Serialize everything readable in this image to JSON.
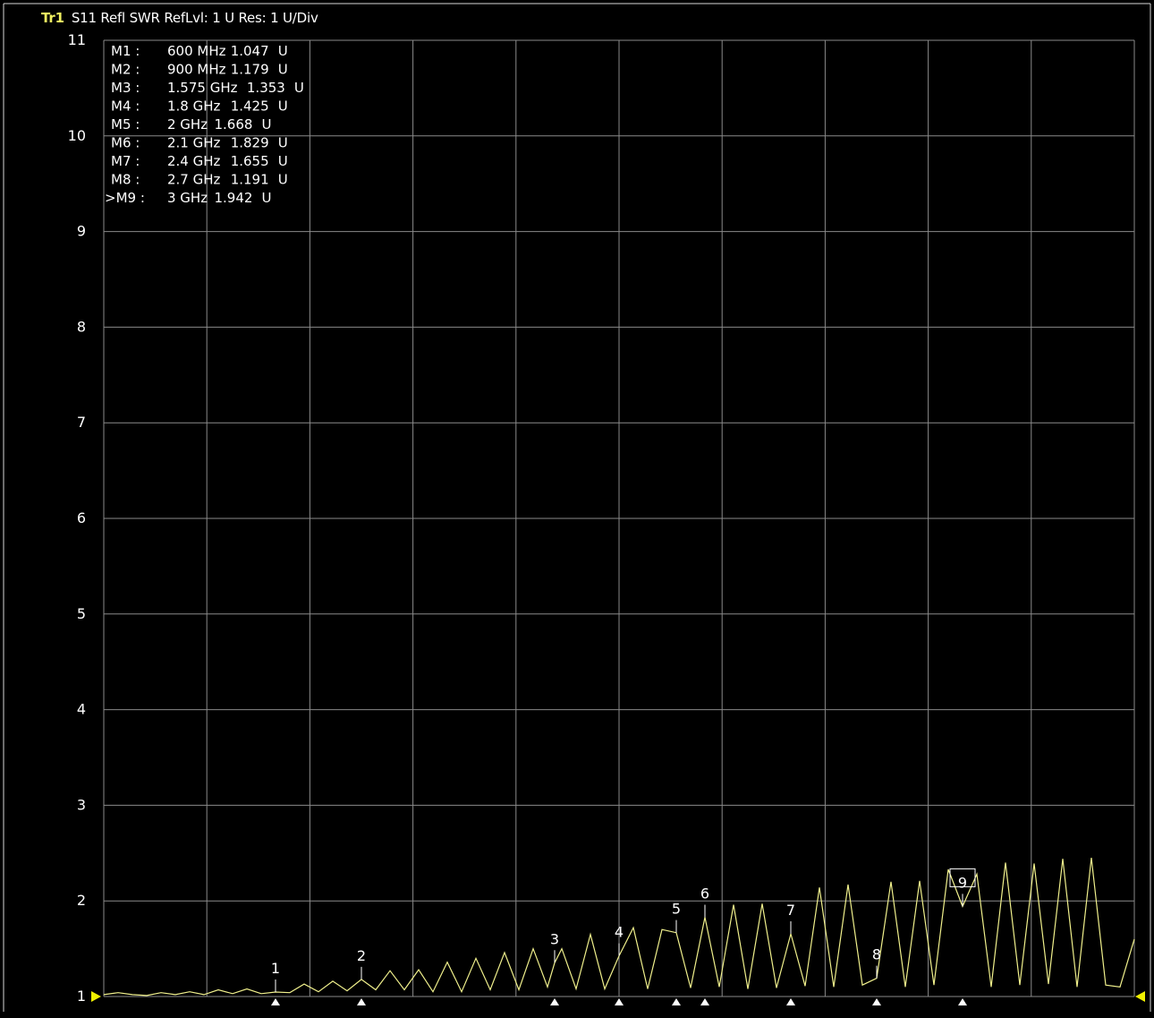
{
  "header": {
    "trace_name": "Tr1",
    "trace_info": "S11 Refl SWR RefLvl: 1  U Res: 1  U/Div"
  },
  "colors": {
    "background": "#000000",
    "trace": "#f0f08c",
    "grid": "#8a8a8a",
    "text": "#ffffff",
    "marker_accent": "#f0f000"
  },
  "chart_data": {
    "type": "line",
    "title": "",
    "xlabel": "",
    "ylabel": "",
    "xlim_GHz": [
      0,
      3.6
    ],
    "ylim": [
      1,
      11
    ],
    "y_ticks": [
      "11",
      "10",
      "9",
      "8",
      "7",
      "6",
      "5",
      "4",
      "3",
      "2",
      "1"
    ],
    "grid": true,
    "vertical_divisions": 10,
    "series": [
      {
        "x_GHz": [
          0.0,
          0.05,
          0.1,
          0.15,
          0.2,
          0.25,
          0.3,
          0.35,
          0.4,
          0.45,
          0.5,
          0.55,
          0.6,
          0.65,
          0.7,
          0.75,
          0.8,
          0.85,
          0.9,
          0.95,
          1.0,
          1.05,
          1.1,
          1.15,
          1.2,
          1.25,
          1.3,
          1.35,
          1.4,
          1.45,
          1.5,
          1.55,
          1.575,
          1.6,
          1.65,
          1.7,
          1.75,
          1.8,
          1.85,
          1.9,
          1.95,
          2.0,
          2.05,
          2.1,
          2.15,
          2.2,
          2.25,
          2.3,
          2.35,
          2.4,
          2.45,
          2.5,
          2.55,
          2.6,
          2.65,
          2.7,
          2.75,
          2.8,
          2.85,
          2.9,
          2.95,
          3.0,
          3.05,
          3.1,
          3.15,
          3.2,
          3.25,
          3.3,
          3.35,
          3.4,
          3.45,
          3.5,
          3.55,
          3.6
        ],
        "y": [
          1.02,
          1.04,
          1.02,
          1.01,
          1.04,
          1.02,
          1.05,
          1.02,
          1.07,
          1.03,
          1.08,
          1.03,
          1.047,
          1.04,
          1.13,
          1.05,
          1.16,
          1.06,
          1.179,
          1.07,
          1.27,
          1.07,
          1.28,
          1.05,
          1.36,
          1.05,
          1.4,
          1.07,
          1.46,
          1.07,
          1.5,
          1.1,
          1.353,
          1.5,
          1.08,
          1.65,
          1.08,
          1.425,
          1.72,
          1.08,
          1.7,
          1.668,
          1.09,
          1.829,
          1.1,
          1.96,
          1.08,
          1.97,
          1.09,
          1.655,
          1.11,
          2.14,
          1.1,
          2.17,
          1.12,
          1.191,
          2.2,
          1.1,
          2.21,
          1.12,
          2.33,
          1.942,
          2.28,
          1.1,
          2.4,
          1.12,
          2.39,
          1.13,
          2.44,
          1.1,
          2.45,
          1.12,
          1.1,
          1.6
        ]
      }
    ],
    "markers": [
      {
        "name": "M1",
        "num": "1",
        "label": "M1 :",
        "freq": "600 MHz",
        "value": "1.047",
        "unit": "U",
        "x_GHz": 0.6,
        "y": 1.047,
        "active": false
      },
      {
        "name": "M2",
        "num": "2",
        "label": "M2 :",
        "freq": "900 MHz",
        "value": "1.179",
        "unit": "U",
        "x_GHz": 0.9,
        "y": 1.179,
        "active": false
      },
      {
        "name": "M3",
        "num": "3",
        "label": "M3 :",
        "freq": "1.575 GHz",
        "value": "1.353",
        "unit": "U",
        "x_GHz": 1.575,
        "y": 1.353,
        "active": false
      },
      {
        "name": "M4",
        "num": "4",
        "label": "M4 :",
        "freq": "1.8 GHz",
        "value": "1.425",
        "unit": "U",
        "x_GHz": 1.8,
        "y": 1.425,
        "active": false
      },
      {
        "name": "M5",
        "num": "5",
        "label": "M5 :",
        "freq": "2 GHz",
        "value": "1.668",
        "unit": "U",
        "x_GHz": 2.0,
        "y": 1.668,
        "active": false
      },
      {
        "name": "M6",
        "num": "6",
        "label": "M6 :",
        "freq": "2.1 GHz",
        "value": "1.829",
        "unit": "U",
        "x_GHz": 2.1,
        "y": 1.829,
        "active": false
      },
      {
        "name": "M7",
        "num": "7",
        "label": "M7 :",
        "freq": "2.4 GHz",
        "value": "1.655",
        "unit": "U",
        "x_GHz": 2.4,
        "y": 1.655,
        "active": false
      },
      {
        "name": "M8",
        "num": "8",
        "label": "M8 :",
        "freq": "2.7 GHz",
        "value": "1.191",
        "unit": "U",
        "x_GHz": 2.7,
        "y": 1.191,
        "active": false
      },
      {
        "name": "M9",
        "num": "9",
        "label": ">M9 :",
        "freq": "3 GHz",
        "value": "1.942",
        "unit": "U",
        "x_GHz": 3.0,
        "y": 1.942,
        "active": true
      }
    ]
  }
}
